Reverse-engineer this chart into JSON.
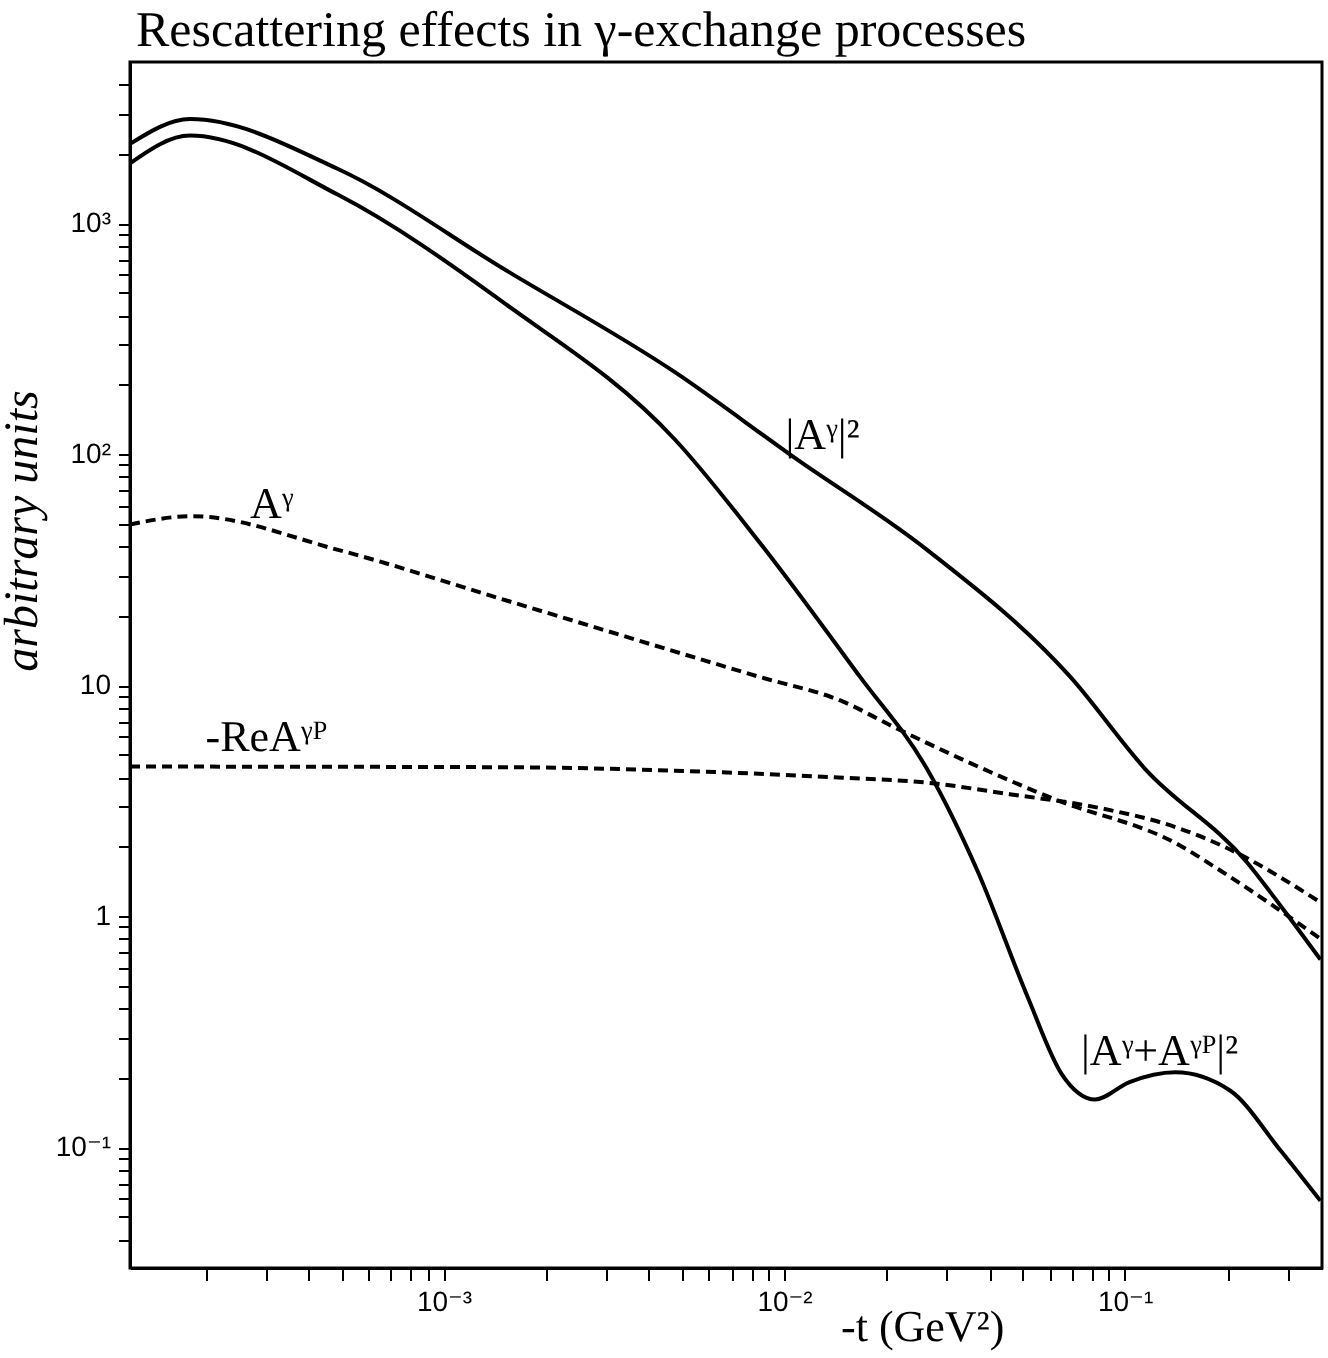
{
  "chart_data": {
    "type": "line",
    "title": "Rescattering effects in γ-exchange processes",
    "xlabel": "-t (GeV²)",
    "ylabel": "arbitrary units",
    "log": "xy",
    "xlim": [
      0.00012,
      0.38
    ],
    "ylim": [
      0.03,
      5000
    ],
    "xticks": [
      {
        "value": 0.0002,
        "label": null
      },
      {
        "value": 0.0003,
        "label": null
      },
      {
        "value": 0.0004,
        "label": null
      },
      {
        "value": 0.0005,
        "label": null
      },
      {
        "value": 0.0006,
        "label": null
      },
      {
        "value": 0.0007,
        "label": null
      },
      {
        "value": 0.0008,
        "label": null
      },
      {
        "value": 0.0009,
        "label": null
      },
      {
        "value": 0.001,
        "label": "10⁻³"
      },
      {
        "value": 0.002,
        "label": null
      },
      {
        "value": 0.003,
        "label": null
      },
      {
        "value": 0.004,
        "label": null
      },
      {
        "value": 0.005,
        "label": null
      },
      {
        "value": 0.006,
        "label": null
      },
      {
        "value": 0.007,
        "label": null
      },
      {
        "value": 0.008,
        "label": null
      },
      {
        "value": 0.009,
        "label": null
      },
      {
        "value": 0.01,
        "label": "10⁻²"
      },
      {
        "value": 0.02,
        "label": null
      },
      {
        "value": 0.03,
        "label": null
      },
      {
        "value": 0.04,
        "label": null
      },
      {
        "value": 0.05,
        "label": null
      },
      {
        "value": 0.06,
        "label": null
      },
      {
        "value": 0.07,
        "label": null
      },
      {
        "value": 0.08,
        "label": null
      },
      {
        "value": 0.09,
        "label": null
      },
      {
        "value": 0.1,
        "label": "10⁻¹"
      },
      {
        "value": 0.2,
        "label": null
      },
      {
        "value": 0.3,
        "label": null
      }
    ],
    "yticks": [
      {
        "value": 0.04,
        "label": null
      },
      {
        "value": 0.05,
        "label": null
      },
      {
        "value": 0.06,
        "label": null
      },
      {
        "value": 0.07,
        "label": null
      },
      {
        "value": 0.08,
        "label": null
      },
      {
        "value": 0.09,
        "label": null
      },
      {
        "value": 0.1,
        "label": "10⁻¹"
      },
      {
        "value": 0.2,
        "label": null
      },
      {
        "value": 0.3,
        "label": null
      },
      {
        "value": 0.4,
        "label": null
      },
      {
        "value": 0.5,
        "label": null
      },
      {
        "value": 0.6,
        "label": null
      },
      {
        "value": 0.7,
        "label": null
      },
      {
        "value": 0.8,
        "label": null
      },
      {
        "value": 0.9,
        "label": null
      },
      1,
      {
        "value": 2,
        "label": null
      },
      {
        "value": 3,
        "label": null
      },
      {
        "value": 4,
        "label": null
      },
      {
        "value": 5,
        "label": null
      },
      {
        "value": 6,
        "label": null
      },
      {
        "value": 7,
        "label": null
      },
      {
        "value": 8,
        "label": null
      },
      {
        "value": 9,
        "label": null
      },
      10,
      {
        "value": 20,
        "label": null
      },
      {
        "value": 30,
        "label": null
      },
      {
        "value": 40,
        "label": null
      },
      {
        "value": 50,
        "label": null
      },
      {
        "value": 60,
        "label": null
      },
      {
        "value": 70,
        "label": null
      },
      {
        "value": 80,
        "label": null
      },
      {
        "value": 90,
        "label": null
      },
      {
        "value": 100,
        "label": "10²"
      },
      {
        "value": 200,
        "label": null
      },
      {
        "value": 300,
        "label": null
      },
      {
        "value": 400,
        "label": null
      },
      {
        "value": 500,
        "label": null
      },
      {
        "value": 600,
        "label": null
      },
      {
        "value": 700,
        "label": null
      },
      {
        "value": 800,
        "label": null
      },
      {
        "value": 900,
        "label": null
      },
      {
        "value": 1000,
        "label": "10³"
      },
      {
        "value": 2000,
        "label": null
      },
      {
        "value": 3000,
        "label": null
      },
      {
        "value": 4000,
        "label": null
      }
    ],
    "series": [
      {
        "color": "#000000",
        "line_style": "solid",
        "x": [
          0.00012,
          0.00018,
          0.00049,
          0.00153,
          0.00478,
          0.0106,
          0.0263,
          0.0692,
          0.115,
          0.229,
          0.286,
          0.376
        ],
        "values": [
          2210,
          2830,
          1720,
          625,
          227,
          98,
          38.6,
          10.9,
          4.34,
          1.71,
          1.12,
          0.65
        ]
      },
      {
        "color": "#000000",
        "line_style": "solid",
        "x": [
          0.00012,
          0.00018,
          0.00049,
          0.00153,
          0.00478,
          0.00843,
          0.0167,
          0.0263,
          0.037,
          0.052,
          0.0653,
          0.082,
          0.103,
          0.141,
          0.204,
          0.286,
          0.376
        ],
        "values": [
          1820,
          2400,
          1330,
          445,
          116,
          42,
          10.9,
          4.34,
          1.57,
          0.445,
          0.208,
          0.161,
          0.191,
          0.211,
          0.176,
          0.0975,
          0.0586
        ]
      },
      {
        "color": "#000000",
        "line_style": "dashed",
        "x": [
          0.00012,
          0.000182,
          0.00049,
          0.00153,
          0.00843,
          0.0149,
          0.021,
          0.0617,
          0.145,
          0.192,
          0.376
        ],
        "values": [
          49.7,
          54,
          38.6,
          23.3,
          10.9,
          8.5,
          6.6,
          3.23,
          2.03,
          1.57,
          0.8
        ]
      },
      {
        "color": "#000000",
        "line_style": "dashed",
        "x": [
          0.00012,
          0.00153,
          0.00478,
          0.0149,
          0.0263,
          0.0465,
          0.082,
          0.145,
          0.192,
          0.376
        ],
        "values": [
          4.45,
          4.42,
          4.27,
          3.98,
          3.79,
          3.37,
          2.97,
          2.4,
          2.03,
          1.15
        ]
      }
    ],
    "annotations": [
      {
        "text": "|Aᵞ|²",
        "x": 0.0101,
        "y": 90
      },
      {
        "text": "Aᵞ",
        "x": 0.00027,
        "y": 45
      },
      {
        "text": "-ReAᵞᴾ",
        "x": 0.0002,
        "y": 4.44
      },
      {
        "text": "|Aᵞ+Aᵞᴾ|²",
        "x": 0.0745,
        "y": 0.194
      }
    ]
  }
}
